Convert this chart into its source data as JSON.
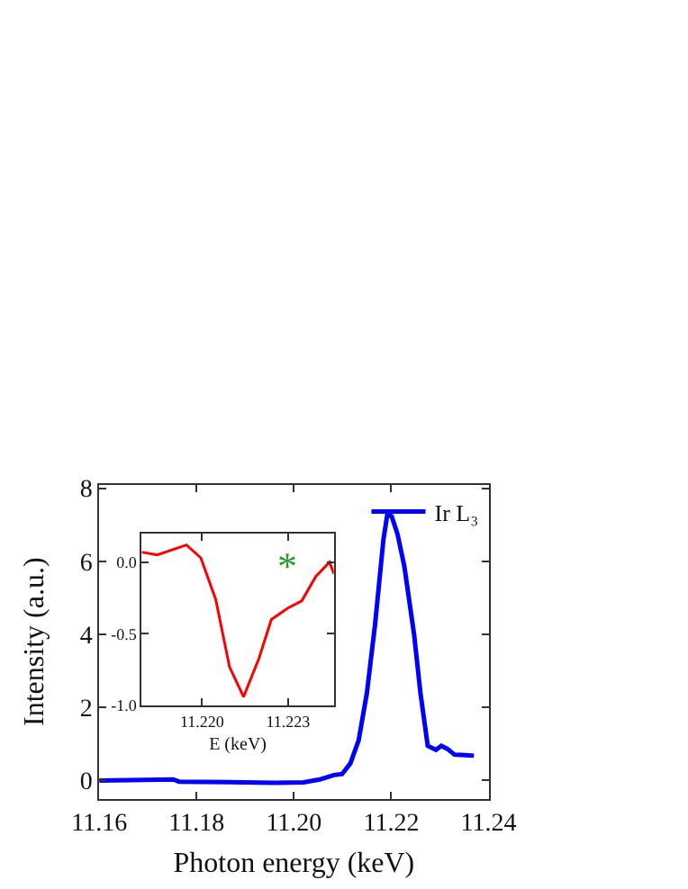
{
  "chart_data": [
    {
      "type": "line",
      "xlabel": "Photon energy (keV)",
      "ylabel": "Intensity (a.u.)",
      "xlim": [
        11.16,
        11.24
      ],
      "ylim": [
        -0.5,
        8.1
      ],
      "xticks": [
        11.16,
        11.18,
        {
          "value": 11.2,
          "label": "11.20"
        },
        11.22,
        11.24
      ],
      "yticks": [
        0,
        2,
        4,
        6,
        8
      ],
      "legend": "top right",
      "series": [
        {
          "name": "Ir L₃",
          "color": "#0000ff",
          "x": [
            11.16,
            11.1752,
            11.1764,
            11.196,
            11.202,
            11.2053,
            11.2082,
            11.2099,
            11.2116,
            11.2133,
            11.215,
            11.2167,
            11.2184,
            11.2192,
            11.2201,
            11.2213,
            11.2227,
            11.2247,
            11.226,
            11.2275,
            11.2292,
            11.2303,
            11.2315,
            11.233,
            11.236,
            11.237
          ],
          "values": [
            0,
            0.03,
            -0.03,
            -0.06,
            -0.05,
            0.03,
            0.15,
            0.18,
            0.47,
            1.1,
            2.4,
            4.3,
            6.6,
            7.28,
            7.23,
            6.74,
            5.86,
            4.0,
            2.4,
            0.95,
            0.84,
            0.95,
            0.87,
            0.71,
            0.69,
            0.68
          ]
        }
      ]
    },
    {
      "type": "line",
      "xlabel": "E (keV)",
      "xlim": [
        11.2179,
        11.2246
      ],
      "ylim": [
        -1.0,
        0.2
      ],
      "xticks": [
        {
          "value": 11.22,
          "label": "11.220"
        },
        11.223
      ],
      "yticks": [
        {
          "value": 0,
          "label": "0.0"
        },
        -0.5,
        {
          "value": -1,
          "label": "-1.0"
        }
      ],
      "annotations": [
        "*"
      ],
      "series": [
        {
          "color": "#ff0000",
          "x": [
            11.2179,
            11.21844,
            11.21946,
            11.21996,
            11.22048,
            11.22096,
            11.22145,
            11.22199,
            11.22242,
            11.223,
            11.22348,
            11.22397,
            11.22445,
            11.2246
          ],
          "values": [
            0.07,
            0.05,
            0.12,
            0.03,
            -0.26,
            -0.73,
            -0.94,
            -0.67,
            -0.4,
            -0.32,
            -0.27,
            -0.1,
            0.0,
            -0.08
          ]
        }
      ]
    }
  ]
}
